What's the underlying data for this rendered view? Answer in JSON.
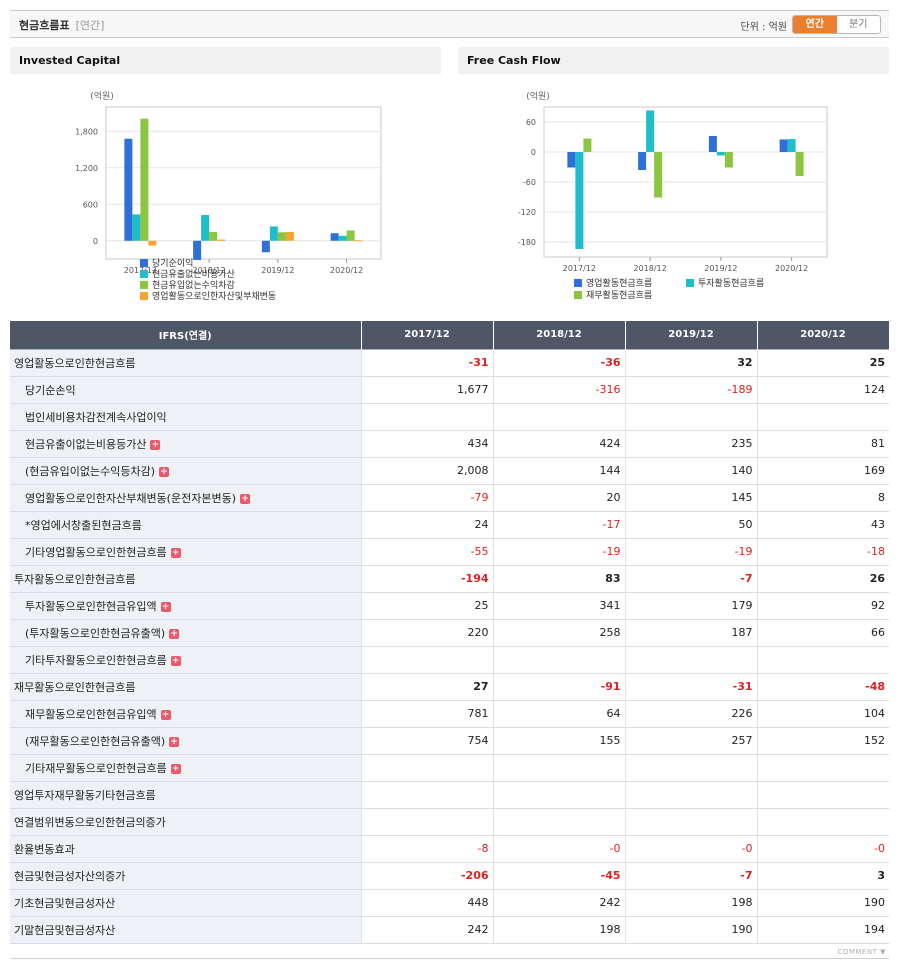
{
  "header": {
    "title": "현금흐름표",
    "subtitle": "[연간]",
    "unit_label": "단위 : 억원",
    "toggle": {
      "annual": "연간",
      "quarter": "분기",
      "selected": "annual"
    }
  },
  "charts": {
    "invested": {
      "panel_title": "Invested Capital",
      "unit": "(억원)"
    },
    "fcf": {
      "panel_title": "Free Cash Flow",
      "unit": "(억원)"
    }
  },
  "chart_data": [
    {
      "type": "bar",
      "title": "Invested Capital",
      "ylabel": "(억원)",
      "categories": [
        "2017/12",
        "2018/12",
        "2019/12",
        "2020/12"
      ],
      "yticks": [
        "1,800",
        "1,200",
        "600",
        "0"
      ],
      "ytick_values": [
        1800,
        1200,
        600,
        0
      ],
      "ylim": [
        -300,
        2200
      ],
      "series": [
        {
          "name": "당기순이익",
          "color": "#2f6fd8",
          "values": [
            1677,
            -316,
            -189,
            124
          ]
        },
        {
          "name": "현금유출없는비용가산",
          "color": "#1fbecb",
          "values": [
            434,
            424,
            235,
            81
          ]
        },
        {
          "name": "현금유입없는수익차감",
          "color": "#8cc540",
          "values": [
            2008,
            144,
            140,
            169
          ]
        },
        {
          "name": "영업활동으로인한자산및부채변동",
          "color": "#f7a433",
          "values": [
            -79,
            20,
            145,
            8
          ]
        }
      ]
    },
    {
      "type": "bar",
      "title": "Free Cash Flow",
      "ylabel": "(억원)",
      "categories": [
        "2017/12",
        "2018/12",
        "2019/12",
        "2020/12"
      ],
      "yticks": [
        "60",
        "0",
        "-60",
        "-120",
        "-180"
      ],
      "ytick_values": [
        60,
        0,
        -60,
        -120,
        -180
      ],
      "ylim": [
        -210,
        90
      ],
      "series": [
        {
          "name": "영업활동현금흐름",
          "color": "#2f6fd8",
          "values": [
            -31,
            -36,
            32,
            25
          ]
        },
        {
          "name": "투자활동현금흐름",
          "color": "#1fbecb",
          "values": [
            -194,
            83,
            -7,
            26
          ]
        },
        {
          "name": "재무활동현금흐름",
          "color": "#8cc540",
          "values": [
            27,
            -91,
            -31,
            -48
          ]
        }
      ]
    }
  ],
  "table": {
    "header_label": "IFRS(연결)",
    "periods": [
      "2017/12",
      "2018/12",
      "2019/12",
      "2020/12"
    ],
    "rows": [
      {
        "label": "영업활동으로인한현금흐름",
        "major": true,
        "plus": false,
        "values": [
          "-31",
          "-36",
          "32",
          "25"
        ]
      },
      {
        "label": "당기순손익",
        "major": false,
        "plus": false,
        "values": [
          "1,677",
          "-316",
          "-189",
          "124"
        ]
      },
      {
        "label": "법인세비용차감전계속사업이익",
        "major": false,
        "plus": false,
        "values": [
          "",
          "",
          "",
          ""
        ]
      },
      {
        "label": "현금유출이없는비용등가산",
        "major": false,
        "plus": true,
        "values": [
          "434",
          "424",
          "235",
          "81"
        ]
      },
      {
        "label": "(현금유입이없는수익등차감)",
        "major": false,
        "plus": true,
        "values": [
          "2,008",
          "144",
          "140",
          "169"
        ]
      },
      {
        "label": "영업활동으로인한자산부채변동(운전자본변동)",
        "major": false,
        "plus": true,
        "values": [
          "-79",
          "20",
          "145",
          "8"
        ]
      },
      {
        "label": "*영업에서창출된현금흐름",
        "major": false,
        "plus": false,
        "values": [
          "24",
          "-17",
          "50",
          "43"
        ]
      },
      {
        "label": "기타영업활동으로인한현금흐름",
        "major": false,
        "plus": true,
        "values": [
          "-55",
          "-19",
          "-19",
          "-18"
        ]
      },
      {
        "label": "투자활동으로인한현금흐름",
        "major": true,
        "plus": false,
        "values": [
          "-194",
          "83",
          "-7",
          "26"
        ]
      },
      {
        "label": "투자활동으로인한현금유입액",
        "major": false,
        "plus": true,
        "values": [
          "25",
          "341",
          "179",
          "92"
        ]
      },
      {
        "label": "(투자활동으로인한현금유출액)",
        "major": false,
        "plus": true,
        "values": [
          "220",
          "258",
          "187",
          "66"
        ]
      },
      {
        "label": "기타투자활동으로인한현금흐름",
        "major": false,
        "plus": true,
        "values": [
          "",
          "",
          "",
          ""
        ]
      },
      {
        "label": "재무활동으로인한현금흐름",
        "major": true,
        "plus": false,
        "values": [
          "27",
          "-91",
          "-31",
          "-48"
        ]
      },
      {
        "label": "재무활동으로인한현금유입액",
        "major": false,
        "plus": true,
        "values": [
          "781",
          "64",
          "226",
          "104"
        ]
      },
      {
        "label": "(재무활동으로인한현금유출액)",
        "major": false,
        "plus": true,
        "values": [
          "754",
          "155",
          "257",
          "152"
        ]
      },
      {
        "label": "기타재무활동으로인한현금흐름",
        "major": false,
        "plus": true,
        "values": [
          "",
          "",
          "",
          ""
        ]
      },
      {
        "label": "영업투자재무활동기타현금흐름",
        "major": true,
        "plus": false,
        "values": [
          "",
          "",
          "",
          ""
        ]
      },
      {
        "label": "연결범위변동으로인한현금의증가",
        "major": true,
        "plus": false,
        "values": [
          "",
          "",
          "",
          ""
        ]
      },
      {
        "label": "환율변동효과",
        "major": true,
        "plus": false,
        "bold_values": false,
        "values": [
          "-8",
          "-0",
          "-0",
          "-0"
        ]
      },
      {
        "label": "현금및현금성자산의증가",
        "major": true,
        "plus": false,
        "values": [
          "-206",
          "-45",
          "-7",
          "3"
        ]
      },
      {
        "label": "기초현금및현금성자산",
        "major": true,
        "plus": false,
        "bold_values": false,
        "values": [
          "448",
          "242",
          "198",
          "190"
        ]
      },
      {
        "label": "기말현금및현금성자산",
        "major": true,
        "plus": false,
        "bold_values": false,
        "values": [
          "242",
          "198",
          "190",
          "194"
        ]
      }
    ]
  },
  "footer": {
    "comment": "COMMENT"
  },
  "icons": {
    "expand": "plus-icon",
    "comment_toggle": "caret-down-icon"
  }
}
